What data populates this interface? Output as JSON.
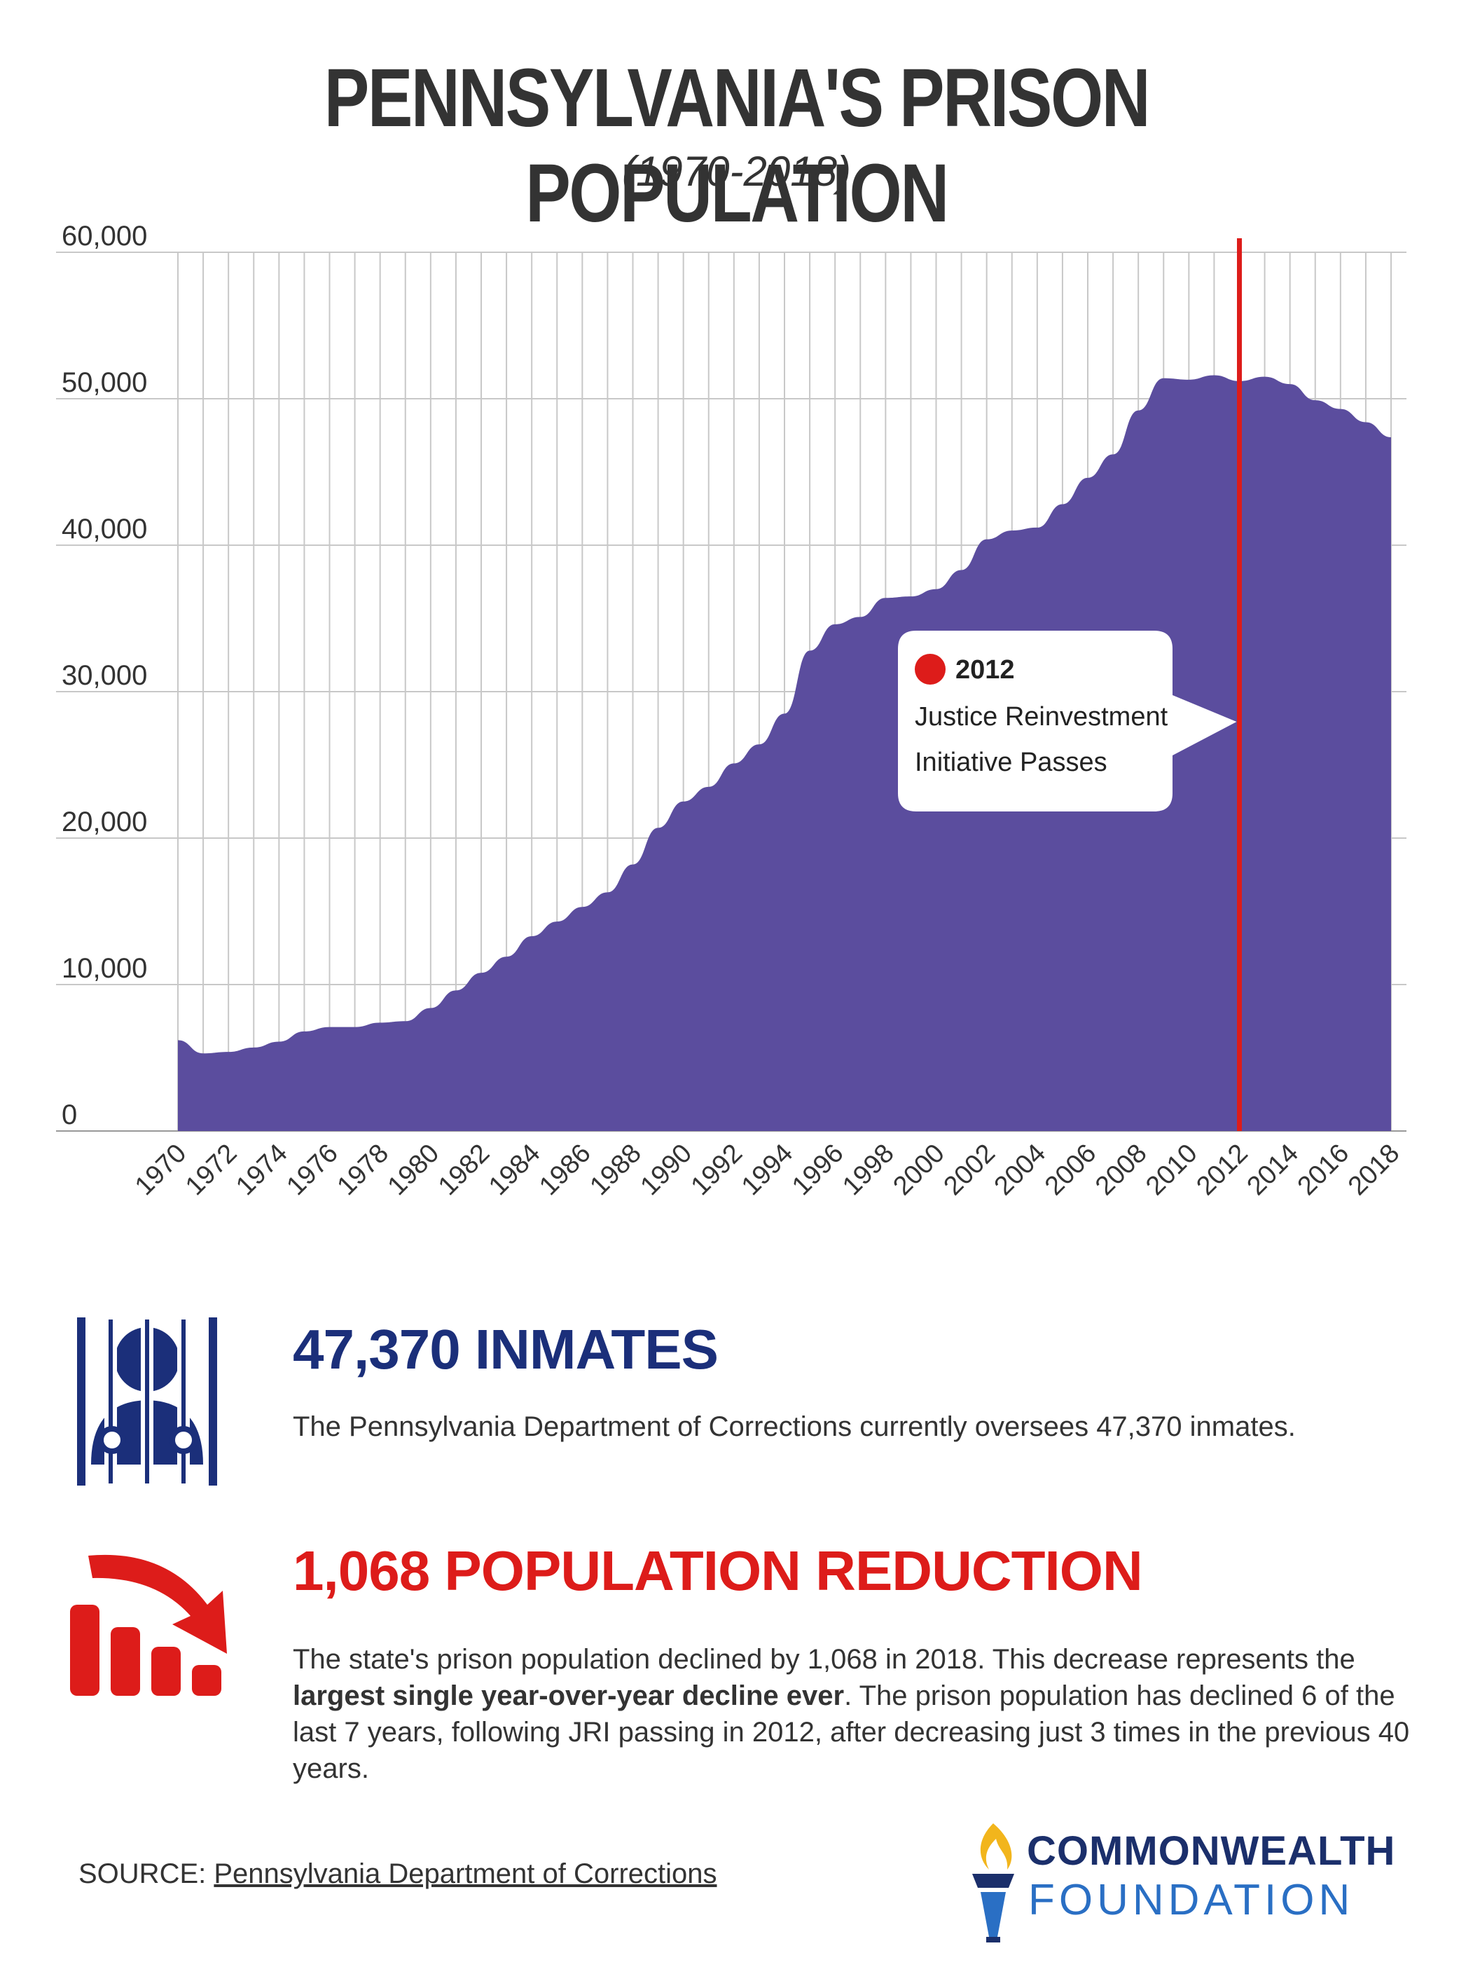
{
  "header": {
    "title": "PENNSYLVANIA'S PRISON POPULATION",
    "subtitle": "(1970-2018)"
  },
  "chart_data": {
    "type": "area",
    "x": [
      1970,
      1971,
      1972,
      1973,
      1974,
      1975,
      1976,
      1977,
      1978,
      1979,
      1980,
      1981,
      1982,
      1983,
      1984,
      1985,
      1986,
      1987,
      1988,
      1989,
      1990,
      1991,
      1992,
      1993,
      1994,
      1995,
      1996,
      1997,
      1998,
      1999,
      2000,
      2001,
      2002,
      2003,
      2004,
      2005,
      2006,
      2007,
      2008,
      2009,
      2010,
      2011,
      2012,
      2013,
      2014,
      2015,
      2016,
      2017,
      2018
    ],
    "values": [
      6200,
      5300,
      5400,
      5700,
      6100,
      6800,
      7100,
      7100,
      7400,
      7500,
      8400,
      9600,
      10800,
      11900,
      13300,
      14300,
      15300,
      16300,
      18200,
      20700,
      22500,
      23500,
      25100,
      26400,
      28500,
      32800,
      34600,
      35100,
      36400,
      36500,
      37000,
      38300,
      40400,
      41000,
      41200,
      42800,
      44600,
      46200,
      49200,
      51400,
      51300,
      51600,
      51200,
      51500,
      51000,
      49900,
      49300,
      48400,
      47370
    ],
    "yticks": [
      "0",
      "10,000",
      "20,000",
      "30,000",
      "40,000",
      "50,000",
      "60,000"
    ],
    "xticks": [
      "1970",
      "1972",
      "1974",
      "1976",
      "1978",
      "1980",
      "1982",
      "1984",
      "1986",
      "1988",
      "1990",
      "1992",
      "1994",
      "1996",
      "1998",
      "2000",
      "2002",
      "2004",
      "2006",
      "2008",
      "2010",
      "2012",
      "2014",
      "2016",
      "2018"
    ],
    "xlim": [
      1970,
      2018
    ],
    "ylim": [
      0,
      60000
    ],
    "grid": true,
    "area_color": "#5b4d9e",
    "marker_year": 2012,
    "marker_color": "#dd1c1a",
    "annotation": {
      "year": "2012",
      "line1": "Justice Reinvestment",
      "line2": "Initiative Passes"
    }
  },
  "stats": {
    "inmates": {
      "heading": "47,370 INMATES",
      "text": "The Pennsylvania Department of Corrections currently oversees 47,370 inmates.",
      "color": "#1b2f7a"
    },
    "reduction": {
      "heading": "1,068 POPULATION REDUCTION",
      "text_part1": "The state's prison population declined by 1,068 in 2018. This decrease represents the ",
      "text_bold": "largest single year-over-year decline ever",
      "text_part2": ".  The prison population has declined 6 of the last 7 years, following JRI passing in 2012, after decreasing just 3 times in the previous 40 years.",
      "color": "#dd1c1a"
    }
  },
  "footer": {
    "source_label": "SOURCE:",
    "source_link": "Pennsylvania Department of Corrections",
    "logo_line1": "COMMONWEALTH",
    "logo_line2": "FOUNDATION"
  }
}
